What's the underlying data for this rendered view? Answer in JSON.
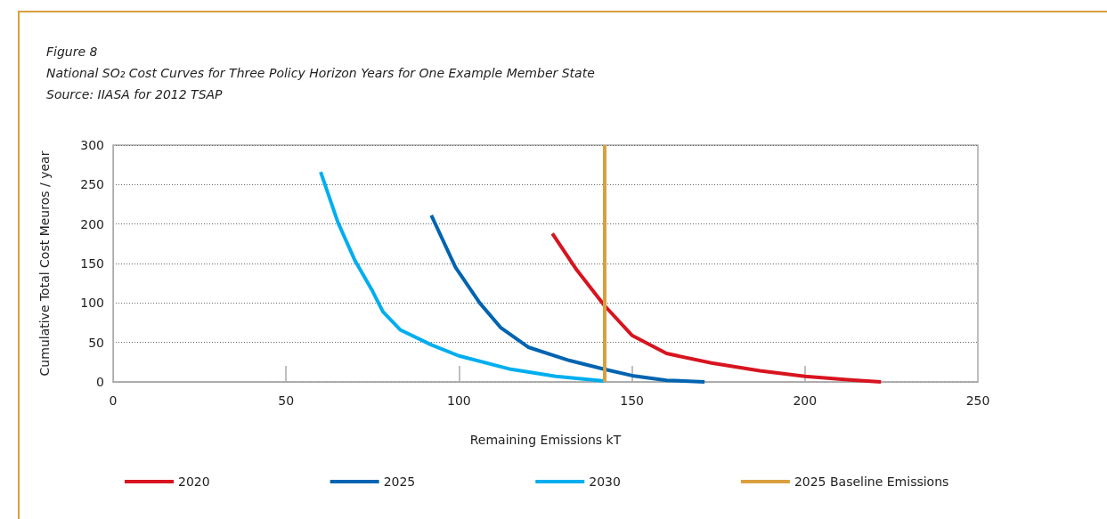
{
  "chart_data": {
    "type": "line",
    "title": "Figure 8",
    "subtitle": "National SO₂ Cost Curves for Three Policy Horizon Years for One Example Member State",
    "annotations": [
      "Source: IIASA for 2012 TSAP"
    ],
    "xlabel": "Remaining Emissions kT",
    "ylabel": "Cumulative Total Cost Meuros / year",
    "xlim": [
      0,
      250
    ],
    "xticks": [
      0,
      50,
      100,
      150,
      200,
      250
    ],
    "ylim": [
      0,
      300
    ],
    "yticks": [
      0,
      50,
      100,
      150,
      200,
      250,
      300
    ],
    "grid": "y",
    "legend": "bottom",
    "marker": "none",
    "line_style": "solid",
    "series": [
      {
        "name": "2020",
        "color": "#d7141f",
        "x": [
          127,
          134,
          142,
          150,
          160,
          173,
          187,
          200,
          213,
          222
        ],
        "values": [
          188,
          142,
          97,
          59,
          36,
          24,
          14,
          7,
          2.5,
          0
        ]
      },
      {
        "name": "2025",
        "color": "#0064b0",
        "x": [
          92,
          99,
          106,
          112,
          120,
          132,
          142,
          150,
          160,
          171
        ],
        "values": [
          211,
          145,
          100,
          69,
          44,
          27,
          16,
          8,
          2,
          0
        ]
      },
      {
        "name": "2030",
        "color": "#00aeef",
        "x": [
          60,
          65,
          70,
          75,
          78,
          83,
          92,
          100,
          115,
          128,
          142
        ],
        "values": [
          266,
          202,
          153,
          115,
          89,
          66,
          47,
          33,
          16,
          7,
          1
        ]
      }
    ],
    "ref_lines": [
      {
        "axis": "x",
        "value": 142,
        "label": "2025 Baseline Emissions",
        "color": "#d9a03f"
      }
    ]
  }
}
